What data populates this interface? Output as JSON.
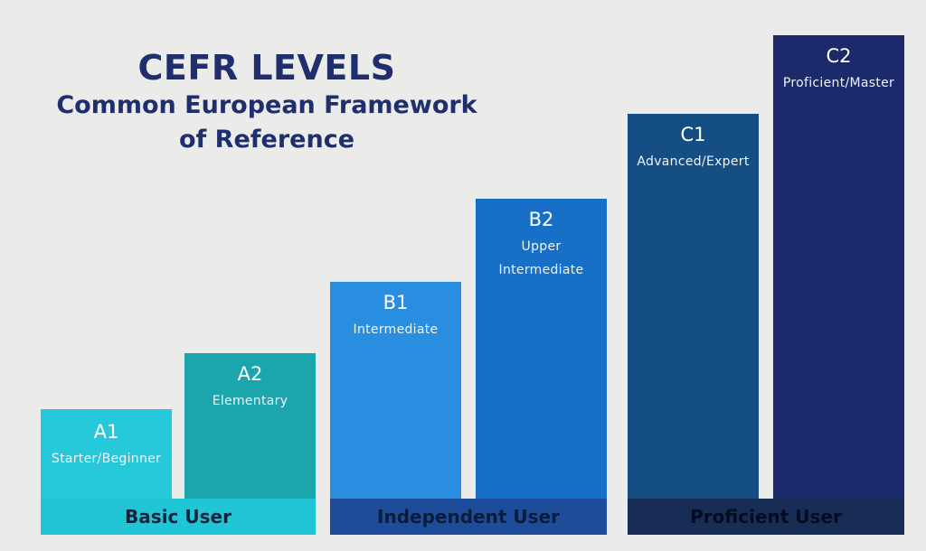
{
  "title": {
    "main": "CEFR LEVELS",
    "sub_line1": "Common European Framework",
    "sub_line2": "of Reference"
  },
  "levels": [
    {
      "code": "A1",
      "desc": "Starter/Beginner",
      "color": "#25c9da"
    },
    {
      "code": "A2",
      "desc": "Elementary",
      "color": "#1aa6ac"
    },
    {
      "code": "B1",
      "desc": "Intermediate",
      "color": "#2a8ee0"
    },
    {
      "code": "B2",
      "desc": "Upper Intermediate",
      "color": "#176fc8"
    },
    {
      "code": "C1",
      "desc": "Advanced/Expert",
      "color": "#154e82"
    },
    {
      "code": "C2",
      "desc": "Proficient/Master",
      "color": "#1b2a6b"
    }
  ],
  "groups": [
    {
      "label": "Basic User",
      "color": "#20c6d6"
    },
    {
      "label": "Independent User",
      "color": "#1d4d9a"
    },
    {
      "label": "Proficient User",
      "color": "#182d56"
    }
  ]
}
